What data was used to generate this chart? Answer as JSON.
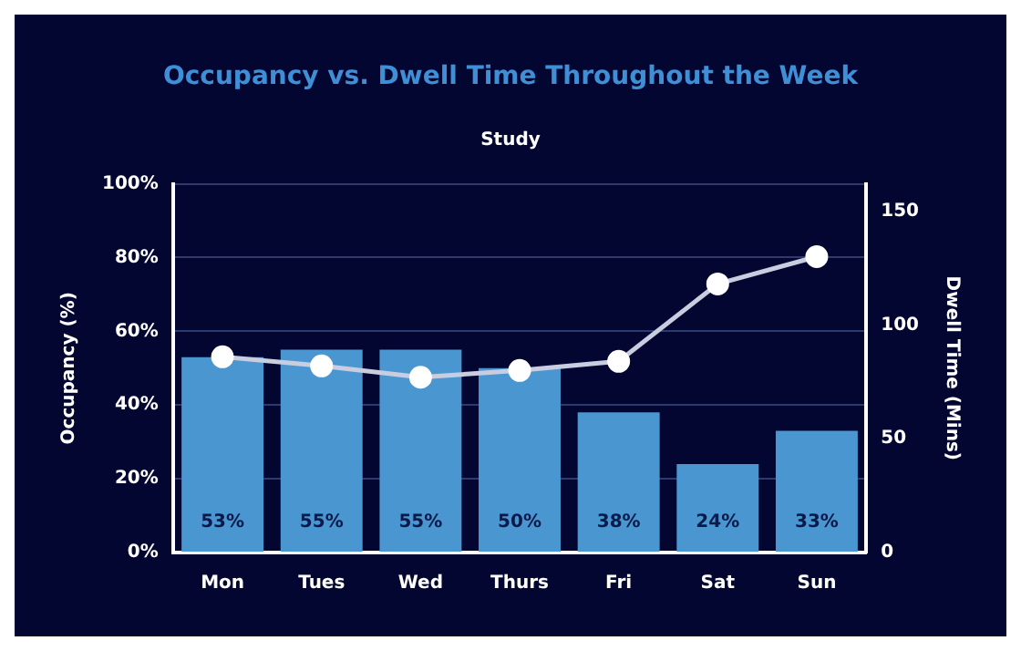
{
  "chart_data": {
    "type": "bar",
    "title": "Occupancy vs. Dwell Time Throughout the Week",
    "subtitle": "Study",
    "ylabel": "Occupancy (%)",
    "y2label": "Dwell Time (Mins)",
    "categories": [
      "Mon",
      "Tues",
      "Wed",
      "Thurs",
      "Fri",
      "Sat",
      "Sun"
    ],
    "series": [
      {
        "color": "#4a96d0",
        "values": [
          53,
          55,
          55,
          50,
          38,
          24,
          33
        ],
        "value_labels": [
          "53%",
          "55%",
          "55%",
          "50%",
          "38%",
          "24%",
          "33%"
        ]
      },
      {
        "type": "line",
        "axis": "y2",
        "color": "#c8cde0",
        "marker": "circle",
        "values": [
          86,
          82,
          77,
          80,
          84,
          118,
          130
        ]
      }
    ],
    "ylim": [
      0,
      100
    ],
    "yticks": [
      {
        "value": 0,
        "label": "0%"
      },
      {
        "value": 20,
        "label": "20%"
      },
      {
        "value": 40,
        "label": "40%"
      },
      {
        "value": 60,
        "label": "60%"
      },
      {
        "value": 80,
        "label": "80%"
      },
      {
        "value": 100,
        "label": "100%"
      }
    ],
    "y2lim": [
      0,
      162
    ],
    "y2ticks": [
      0,
      50,
      100,
      150
    ],
    "grid": "y",
    "legend": false
  }
}
